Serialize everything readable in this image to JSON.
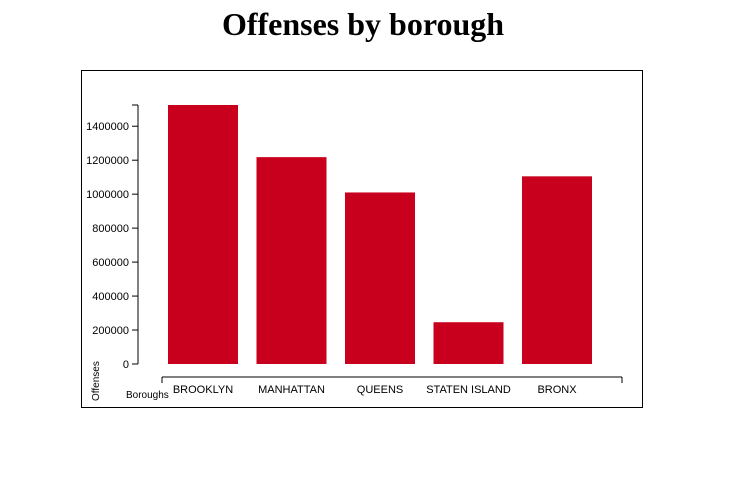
{
  "chart_data": {
    "type": "bar",
    "title": "Offenses by borough",
    "xlabel": "Boroughs",
    "ylabel": "Offenses",
    "categories": [
      "BROOKLYN",
      "MANHATTAN",
      "QUEENS",
      "STATEN ISLAND",
      "BRONX"
    ],
    "values": [
      1525000,
      1218000,
      1010000,
      246000,
      1105000
    ],
    "yticks": [
      "0",
      "200000",
      "400000",
      "600000",
      "800000",
      "1000000",
      "1200000",
      "1400000"
    ],
    "ylim": [
      0,
      1525000
    ],
    "bar_color": "#c8001e",
    "grid": false,
    "legend": "none"
  }
}
